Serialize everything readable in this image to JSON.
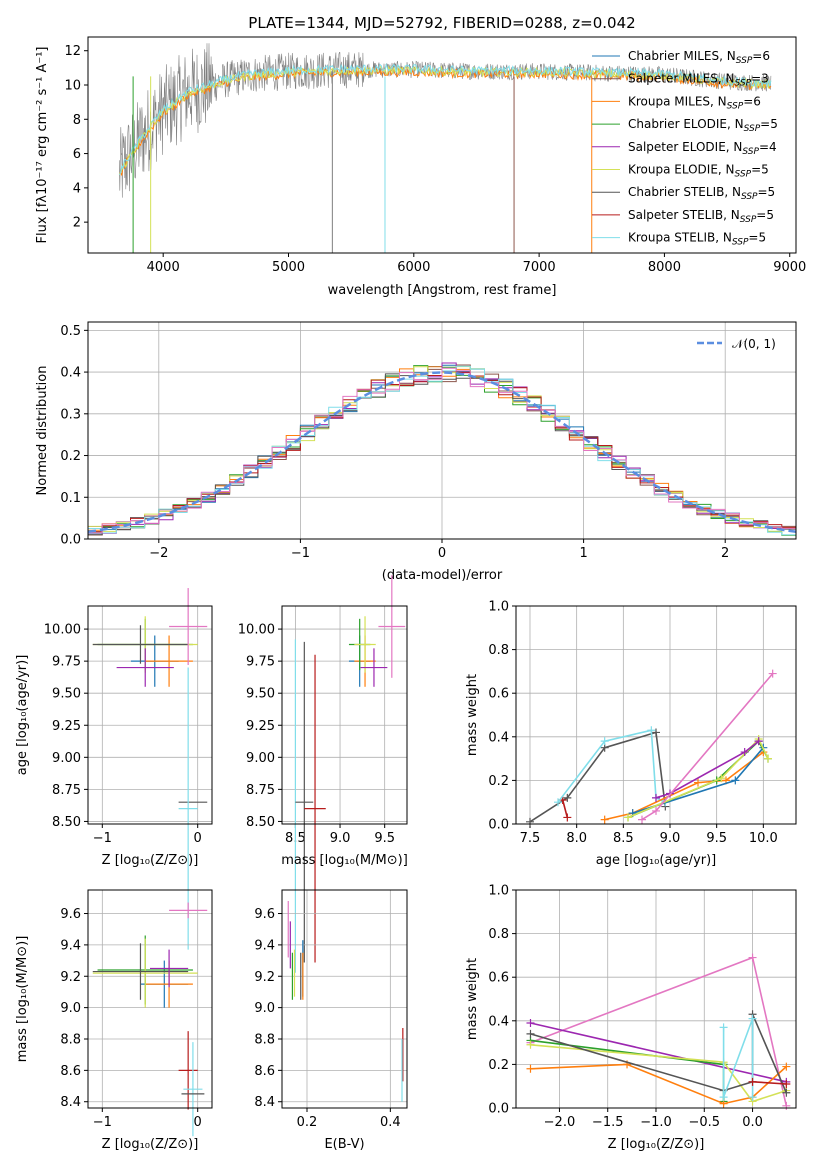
{
  "colors": {
    "Chabrier MILES": "#1f77b4",
    "Salpeter MILES": "#8c564b",
    "Kroupa MILES": "#ff7f0e",
    "Chabrier ELODIE": "#2ca02c",
    "Salpeter ELODIE": "#9c27b0",
    "Kroupa ELODIE": "#d4e157",
    "Chabrier STELIB": "#555555",
    "Salpeter STELIB": "#b71c1c",
    "Kroupa STELIB": "#80deea",
    "model_highlight": "#e377c2",
    "normal_curve": "#5b8ee0",
    "observed_spectrum": "#808080"
  },
  "chart_data": [
    {
      "id": "spectrum",
      "type": "line",
      "title": "PLATE=1344, MJD=52792, FIBERID=0288, z=0.042",
      "xlabel": "wavelength [Angstrom, rest frame]",
      "ylabel": "Flux [fλ10⁻¹⁷ erg cm⁻² s⁻¹ A⁻¹]",
      "xlim": [
        3400,
        9050
      ],
      "ylim": [
        0.2,
        12.8
      ],
      "xticks": [
        4000,
        5000,
        6000,
        7000,
        8000,
        9000
      ],
      "yticks": [
        2,
        4,
        6,
        8,
        10,
        12
      ],
      "grid": false,
      "legend_position": "right",
      "legend": [
        {
          "name": "Chabrier MILES",
          "nssp": "6"
        },
        {
          "name": "Salpeter MILES",
          "nssp": "3"
        },
        {
          "name": "Kroupa MILES",
          "nssp": "6"
        },
        {
          "name": "Chabrier ELODIE",
          "nssp": "5"
        },
        {
          "name": "Salpeter ELODIE",
          "nssp": "4"
        },
        {
          "name": "Kroupa ELODIE",
          "nssp": "5"
        },
        {
          "name": "Chabrier STELIB",
          "nssp": "5"
        },
        {
          "name": "Salpeter STELIB",
          "nssp": "5"
        },
        {
          "name": "Kroupa STELIB",
          "nssp": "5"
        }
      ],
      "continuum": {
        "x": [
          3650,
          3700,
          3800,
          3900,
          4000,
          4100,
          4200,
          4300,
          4500,
          4700,
          5000,
          5500,
          6000,
          6500,
          7000,
          7500,
          8000,
          8500,
          8800
        ],
        "y": [
          4.8,
          5.5,
          6.6,
          7.6,
          8.5,
          9.0,
          9.6,
          9.8,
          10.3,
          10.6,
          10.8,
          10.9,
          10.9,
          10.8,
          10.8,
          10.7,
          10.6,
          10.2,
          10.1
        ]
      }
    },
    {
      "id": "residuals",
      "type": "line",
      "xlabel": "(data-model)/error",
      "ylabel": "Normed distribution",
      "xlim": [
        -2.5,
        2.5
      ],
      "ylim": [
        0,
        0.52
      ],
      "xticks": [
        -2,
        -1,
        0,
        1,
        2
      ],
      "yticks": [
        0.0,
        0.1,
        0.2,
        0.3,
        0.4,
        0.5
      ],
      "grid": true,
      "legend_position": "top-right",
      "legend": [
        "𝒩(0, 1)"
      ]
    },
    {
      "id": "age_vs_Z",
      "type": "scatter",
      "xlabel": "Z [log₁₀(Z/Z⊙)]",
      "ylabel": "age  [log₁₀(age/yr)]",
      "xlim": [
        -1.15,
        0.15
      ],
      "ylim": [
        8.48,
        10.18
      ],
      "xticks": [
        -1,
        0
      ],
      "yticks": [
        8.5,
        8.75,
        9.0,
        9.25,
        9.5,
        9.75,
        10.0
      ],
      "grid": true,
      "points": [
        {
          "s": "Chabrier MILES",
          "x": -0.45,
          "y": 9.75,
          "xe": 0.25,
          "ye": 0.2
        },
        {
          "s": "Kroupa MILES",
          "x": -0.3,
          "y": 9.75,
          "xe": 0.25,
          "ye": 0.2
        },
        {
          "s": "Chabrier ELODIE",
          "x": -0.55,
          "y": 9.88,
          "xe": 0.5,
          "ye": 0.2
        },
        {
          "s": "Kroupa ELODIE",
          "x": -0.55,
          "y": 9.88,
          "xe": 0.55,
          "ye": 0.22
        },
        {
          "s": "Salpeter ELODIE",
          "x": -0.55,
          "y": 9.7,
          "xe": 0.3,
          "ye": 0.15
        },
        {
          "s": "Chabrier STELIB",
          "x": -0.6,
          "y": 9.88,
          "xe": 0.5,
          "ye": 0.15
        },
        {
          "s": "model_highlight",
          "x": -0.1,
          "y": 10.02,
          "xe": 0.2,
          "ye": 0.3
        },
        {
          "s": "Chabrier STELIB",
          "x": -0.05,
          "y": 8.65,
          "xe": 0.15,
          "ye": 0.0
        },
        {
          "s": "Kroupa STELIB",
          "x": -0.1,
          "y": 8.6,
          "xe": 0.1,
          "ye": 1.1
        }
      ]
    },
    {
      "id": "age_vs_mass",
      "type": "scatter",
      "xlabel": "mass [log₁₀(M/M⊙)]",
      "ylabel": "",
      "xlim": [
        8.35,
        9.75
      ],
      "ylim": [
        8.48,
        10.18
      ],
      "xticks": [
        8.5,
        9.0,
        9.5
      ],
      "yticks": [
        8.5,
        8.75,
        9.0,
        9.25,
        9.5,
        9.75,
        10.0
      ],
      "grid": true,
      "points": [
        {
          "s": "Chabrier MILES",
          "x": 9.22,
          "y": 9.75,
          "xe": 0.12,
          "ye": 0.2
        },
        {
          "s": "Kroupa MILES",
          "x": 9.28,
          "y": 9.75,
          "xe": 0.12,
          "ye": 0.2
        },
        {
          "s": "Chabrier ELODIE",
          "x": 9.22,
          "y": 9.88,
          "xe": 0.12,
          "ye": 0.2
        },
        {
          "s": "Kroupa ELODIE",
          "x": 9.28,
          "y": 9.88,
          "xe": 0.12,
          "ye": 0.22
        },
        {
          "s": "Salpeter ELODIE",
          "x": 9.38,
          "y": 9.7,
          "xe": 0.15,
          "ye": 0.15
        },
        {
          "s": "model_highlight",
          "x": 9.58,
          "y": 10.02,
          "xe": 0.15,
          "ye": 0.4
        },
        {
          "s": "Kroupa STELIB",
          "x": 8.5,
          "y": 8.62,
          "xe": 0.0,
          "ye": 1.3
        },
        {
          "s": "Chabrier STELIB",
          "x": 8.6,
          "y": 8.65,
          "xe": 0.1,
          "ye": 1.25
        },
        {
          "s": "Salpeter STELIB",
          "x": 8.72,
          "y": 8.6,
          "xe": 0.12,
          "ye": 1.2
        }
      ]
    },
    {
      "id": "weight_vs_age",
      "type": "line",
      "xlabel": "age  [log₁₀(age/yr)]",
      "ylabel": "mass weight",
      "xlim": [
        7.35,
        10.35
      ],
      "ylim": [
        0,
        1.0
      ],
      "xticks": [
        7.5,
        8.0,
        8.5,
        9.0,
        9.5,
        10.0
      ],
      "yticks": [
        0.0,
        0.2,
        0.4,
        0.6,
        0.8,
        1.0
      ],
      "grid": true,
      "series": [
        {
          "s": "Chabrier STELIB",
          "x": [
            7.5,
            7.9,
            8.3,
            8.85,
            8.95
          ],
          "y": [
            0.01,
            0.12,
            0.35,
            0.42,
            0.08
          ]
        },
        {
          "s": "Salpeter STELIB",
          "x": [
            7.85,
            7.9
          ],
          "y": [
            0.11,
            0.03
          ]
        },
        {
          "s": "Kroupa STELIB",
          "x": [
            7.8,
            8.3,
            8.8,
            8.85,
            8.95
          ],
          "y": [
            0.1,
            0.38,
            0.43,
            0.12,
            0.1
          ]
        },
        {
          "s": "Kroupa MILES",
          "x": [
            8.3,
            8.6,
            9.3,
            9.6,
            10.0
          ],
          "y": [
            0.02,
            0.05,
            0.19,
            0.2,
            0.33
          ]
        },
        {
          "s": "Chabrier MILES",
          "x": [
            8.6,
            9.7,
            10.0
          ],
          "y": [
            0.05,
            0.2,
            0.35
          ]
        },
        {
          "s": "Chabrier ELODIE",
          "x": [
            8.55,
            9.5,
            9.95,
            10.05
          ],
          "y": [
            0.03,
            0.2,
            0.38,
            0.3
          ]
        },
        {
          "s": "Kroupa ELODIE",
          "x": [
            8.55,
            9.55,
            9.95,
            10.05
          ],
          "y": [
            0.03,
            0.21,
            0.39,
            0.3
          ]
        },
        {
          "s": "Salpeter ELODIE",
          "x": [
            8.85,
            9.0,
            9.8,
            9.95
          ],
          "y": [
            0.12,
            0.14,
            0.33,
            0.38
          ]
        },
        {
          "s": "model_highlight",
          "x": [
            8.7,
            8.85,
            10.1
          ],
          "y": [
            0.02,
            0.06,
            0.69
          ]
        }
      ]
    },
    {
      "id": "mass_vs_Z",
      "type": "scatter",
      "xlabel": "Z [log₁₀(Z/Z⊙)]",
      "ylabel": "mass [log₁₀(M/M⊙)]",
      "xlim": [
        -1.15,
        0.15
      ],
      "ylim": [
        8.36,
        9.75
      ],
      "xticks": [
        -1,
        0
      ],
      "yticks": [
        8.4,
        8.6,
        8.8,
        9.0,
        9.2,
        9.4,
        9.6
      ],
      "grid": true,
      "points": [
        {
          "s": "Chabrier MILES",
          "x": -0.35,
          "y": 9.15,
          "xe": 0.25,
          "ye": 0.15
        },
        {
          "s": "Kroupa MILES",
          "x": -0.3,
          "y": 9.15,
          "xe": 0.25,
          "ye": 0.15
        },
        {
          "s": "Chabrier ELODIE",
          "x": -0.55,
          "y": 9.24,
          "xe": 0.5,
          "ye": 0.22
        },
        {
          "s": "Kroupa ELODIE",
          "x": -0.55,
          "y": 9.22,
          "xe": 0.55,
          "ye": 0.22
        },
        {
          "s": "Chabrier STELIB",
          "x": -0.6,
          "y": 9.23,
          "xe": 0.5,
          "ye": 0.18
        },
        {
          "s": "Salpeter ELODIE",
          "x": -0.3,
          "y": 9.25,
          "xe": 0.2,
          "ye": 0.12
        },
        {
          "s": "model_highlight",
          "x": -0.1,
          "y": 9.62,
          "xe": 0.2,
          "ye": 0.05
        },
        {
          "s": "Salpeter STELIB",
          "x": -0.1,
          "y": 8.6,
          "xe": 0.1,
          "ye": 0.25
        },
        {
          "s": "Kroupa STELIB",
          "x": -0.05,
          "y": 8.48,
          "xe": 0.1,
          "ye": 0.3
        },
        {
          "s": "Chabrier STELIB",
          "x": -0.05,
          "y": 8.45,
          "xe": 0.12,
          "ye": 0.0
        }
      ]
    },
    {
      "id": "mass_vs_ebv",
      "type": "scatter",
      "xlabel": "E(B-V)",
      "ylabel": "",
      "xlim": [
        0.14,
        0.44
      ],
      "ylim": [
        8.36,
        9.75
      ],
      "xticks": [
        0.2,
        0.4
      ],
      "yticks": [
        8.4,
        8.6,
        8.8,
        9.0,
        9.2,
        9.4,
        9.6
      ],
      "grid": true,
      "points": [
        {
          "s": "model_highlight",
          "x": 0.155,
          "y": 9.5,
          "xe": 0,
          "ye": 0.18
        },
        {
          "s": "Salpeter ELODIE",
          "x": 0.16,
          "y": 9.4,
          "xe": 0,
          "ye": 0.15
        },
        {
          "s": "Chabrier ELODIE",
          "x": 0.165,
          "y": 9.2,
          "xe": 0,
          "ye": 0.15
        },
        {
          "s": "Kroupa ELODIE",
          "x": 0.17,
          "y": 9.22,
          "xe": 0,
          "ye": 0.15
        },
        {
          "s": "Chabrier MILES",
          "x": 0.19,
          "y": 9.25,
          "xe": 0,
          "ye": 0.18
        },
        {
          "s": "Kroupa MILES",
          "x": 0.19,
          "y": 9.2,
          "xe": 0,
          "ye": 0.15
        },
        {
          "s": "Chabrier STELIB",
          "x": 0.185,
          "y": 9.2,
          "xe": 0,
          "ye": 0.15
        },
        {
          "s": "Salpeter STELIB",
          "x": 0.43,
          "y": 8.7,
          "xe": 0,
          "ye": 0.17
        },
        {
          "s": "Kroupa STELIB",
          "x": 0.428,
          "y": 8.6,
          "xe": 0,
          "ye": 0.2
        }
      ]
    },
    {
      "id": "weight_vs_Z",
      "type": "line",
      "xlabel": "Z [log₁₀(Z/Z⊙)]",
      "ylabel": "mass weight",
      "xlim": [
        -2.45,
        0.45
      ],
      "ylim": [
        0,
        1.0
      ],
      "xticks": [
        -2.0,
        -1.5,
        -1.0,
        -0.5,
        0.0
      ],
      "yticks": [
        0.0,
        0.2,
        0.4,
        0.6,
        0.8,
        1.0
      ],
      "grid": true,
      "series": [
        {
          "s": "model_highlight",
          "x": [
            -2.3,
            0.0,
            0.35
          ],
          "y": [
            0.3,
            0.69,
            0.01
          ]
        },
        {
          "s": "Salpeter ELODIE",
          "x": [
            -2.3,
            0.35
          ],
          "y": [
            0.39,
            0.12
          ]
        },
        {
          "s": "Chabrier ELODIE",
          "x": [
            -2.3,
            -0.3,
            -0.3
          ],
          "y": [
            0.31,
            0.2,
            0.03
          ]
        },
        {
          "s": "Kroupa ELODIE",
          "x": [
            -2.3,
            -0.3,
            0.0,
            0.35
          ],
          "y": [
            0.29,
            0.21,
            0.03,
            0.08
          ]
        },
        {
          "s": "Kroupa MILES",
          "x": [
            -2.3,
            -1.3,
            -0.3,
            0.0,
            0.35
          ],
          "y": [
            0.18,
            0.2,
            0.02,
            0.05,
            0.19
          ]
        },
        {
          "s": "Chabrier STELIB",
          "x": [
            -2.3,
            -0.3,
            0.0,
            0.0,
            0.35
          ],
          "y": [
            0.34,
            0.08,
            0.12,
            0.43,
            0.07
          ]
        },
        {
          "s": "Kroupa STELIB",
          "x": [
            -0.3,
            -0.3,
            0.0,
            0.0
          ],
          "y": [
            0.37,
            0.05,
            0.41,
            0.05
          ]
        },
        {
          "s": "Salpeter STELIB",
          "x": [
            0.0,
            0.35
          ],
          "y": [
            0.12,
            0.11
          ]
        }
      ]
    }
  ]
}
